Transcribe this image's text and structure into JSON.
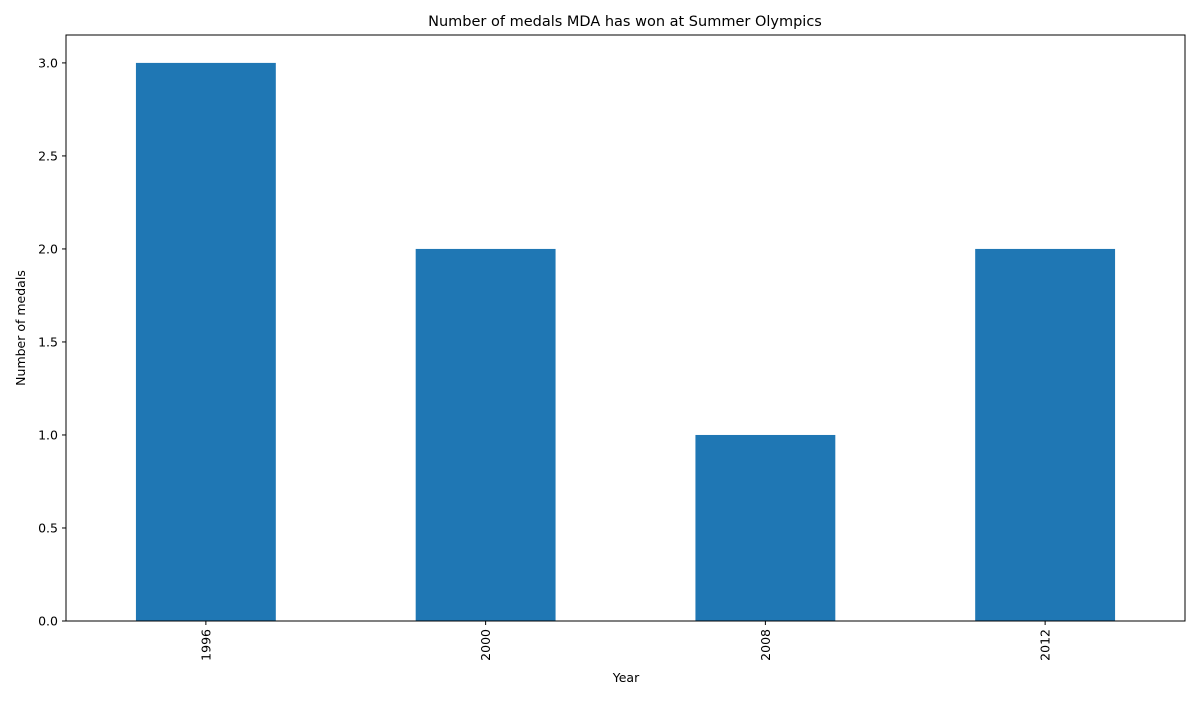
{
  "chart_data": {
    "type": "bar",
    "title": "Number of medals MDA has won at Summer Olympics",
    "xlabel": "Year",
    "ylabel": "Number of medals",
    "categories": [
      "1996",
      "2000",
      "2008",
      "2012"
    ],
    "values": [
      3,
      2,
      1,
      2
    ],
    "ylim": [
      0,
      3.15
    ],
    "yticks": [
      0.0,
      0.5,
      1.0,
      1.5,
      2.0,
      2.5,
      3.0
    ],
    "ytick_labels": [
      "0.0",
      "0.5",
      "1.0",
      "1.5",
      "2.0",
      "2.5",
      "3.0"
    ],
    "xtick_rotation": "vertical",
    "grid": false,
    "legend": "none",
    "bar_color": "#1f77b4"
  }
}
